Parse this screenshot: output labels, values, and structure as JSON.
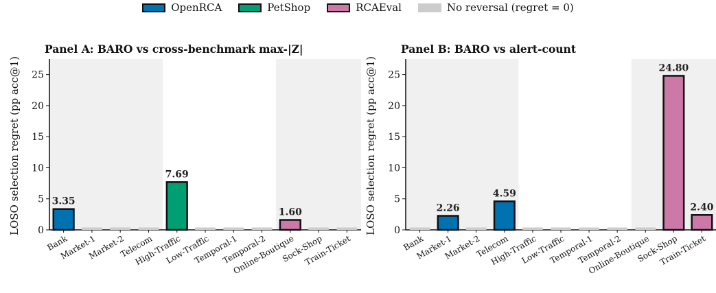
{
  "legend": [
    {
      "label": "OpenRCA",
      "color": "#0072B2",
      "edge": true
    },
    {
      "label": "PetShop",
      "color": "#009E73",
      "edge": true
    },
    {
      "label": "RCAEval",
      "color": "#CC79A7",
      "edge": true
    },
    {
      "label": "No reversal (regret = 0)",
      "color": "#cccccc",
      "edge": false
    }
  ],
  "chart_data": [
    {
      "type": "bar",
      "title": "Panel A: BARO vs cross-benchmark max-|Z|",
      "ylabel": "LOSO selection regret (pp acc@1)",
      "xlabel": "",
      "ylim": [
        0,
        27.5
      ],
      "yticks": [
        0,
        5,
        10,
        15,
        20,
        25
      ],
      "categories": [
        "Bank",
        "Market-1",
        "Market-2",
        "Telecom",
        "High-Traffic",
        "Low-Traffic",
        "Temporal-1",
        "Temporal-2",
        "Online-Boutique",
        "Sock-Shop",
        "Train-Ticket"
      ],
      "values": [
        3.35,
        0,
        0,
        0,
        7.69,
        0,
        0,
        0,
        1.6,
        0,
        0
      ],
      "groups": [
        "OpenRCA",
        "OpenRCA",
        "OpenRCA",
        "OpenRCA",
        "PetShop",
        "PetShop",
        "PetShop",
        "PetShop",
        "RCAEval",
        "RCAEval",
        "RCAEval"
      ],
      "value_labels": [
        "3.35",
        "",
        "",
        "",
        "7.69",
        "",
        "",
        "",
        "1.60",
        "",
        ""
      ],
      "shaded_groups": [
        "OpenRCA",
        "RCAEval"
      ],
      "grid": false
    },
    {
      "type": "bar",
      "title": "Panel B: BARO vs alert-count",
      "ylabel": "LOSO selection regret (pp acc@1)",
      "xlabel": "",
      "ylim": [
        0,
        27.5
      ],
      "yticks": [
        0,
        5,
        10,
        15,
        20,
        25
      ],
      "categories": [
        "Bank",
        "Market-1",
        "Market-2",
        "Telecom",
        "High-Traffic",
        "Low-Traffic",
        "Temporal-1",
        "Temporal-2",
        "Online-Boutique",
        "Sock-Shop",
        "Train-Ticket"
      ],
      "values": [
        0,
        2.26,
        0,
        4.59,
        0,
        0,
        0,
        0,
        0,
        24.8,
        2.4
      ],
      "groups": [
        "OpenRCA",
        "OpenRCA",
        "OpenRCA",
        "OpenRCA",
        "PetShop",
        "PetShop",
        "PetShop",
        "PetShop",
        "RCAEval",
        "RCAEval",
        "RCAEval"
      ],
      "value_labels": [
        "",
        "2.26",
        "",
        "4.59",
        "",
        "",
        "",
        "",
        "",
        "24.80",
        "2.40"
      ],
      "shaded_groups": [
        "OpenRCA",
        "RCAEval"
      ],
      "grid": false
    }
  ]
}
